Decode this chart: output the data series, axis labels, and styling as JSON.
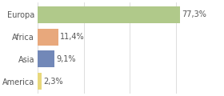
{
  "categories": [
    "Europa",
    "Africa",
    "Asia",
    "America"
  ],
  "values": [
    77.3,
    11.4,
    9.1,
    2.3
  ],
  "labels": [
    "77,3%",
    "11,4%",
    "9,1%",
    "2,3%"
  ],
  "bar_colors": [
    "#b0c98a",
    "#e8a87c",
    "#7288b8",
    "#e8d87c"
  ],
  "background_color": "#ffffff",
  "xlim": [
    0,
    100
  ],
  "label_fontsize": 7.0,
  "tick_fontsize": 7.0,
  "grid_color": "#d8d8d8",
  "text_color": "#555555"
}
